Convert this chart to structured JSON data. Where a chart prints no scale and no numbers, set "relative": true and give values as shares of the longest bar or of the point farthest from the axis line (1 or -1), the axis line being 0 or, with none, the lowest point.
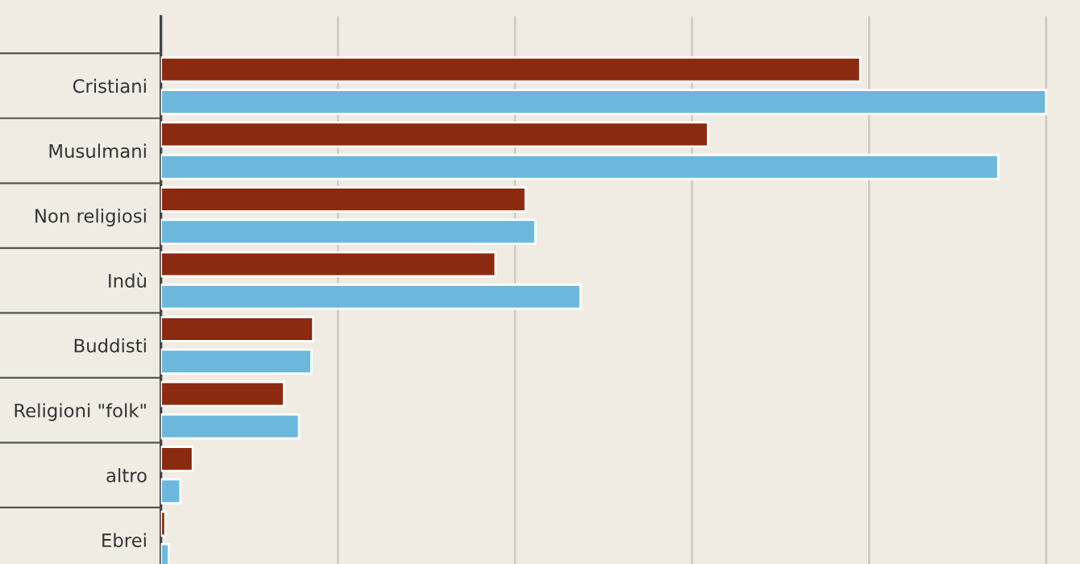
{
  "chart_data": {
    "type": "bar",
    "orientation": "horizontal",
    "relative": true,
    "grid": "x",
    "categories": [
      "Cristiani",
      "Musulmani",
      "Non religiosi",
      "Indù",
      "Buddisti",
      "Religioni \"folk\"",
      "altro",
      "Ebrei"
    ],
    "series": [
      {
        "color": "#8b2a0e",
        "values": [
          0.79,
          0.618,
          0.412,
          0.378,
          0.172,
          0.139,
          0.036,
          0.005
        ]
      },
      {
        "color": "#6cb8dc",
        "values": [
          1,
          0.946,
          0.423,
          0.474,
          0.17,
          0.156,
          0.022,
          0.009
        ]
      }
    ]
  }
}
